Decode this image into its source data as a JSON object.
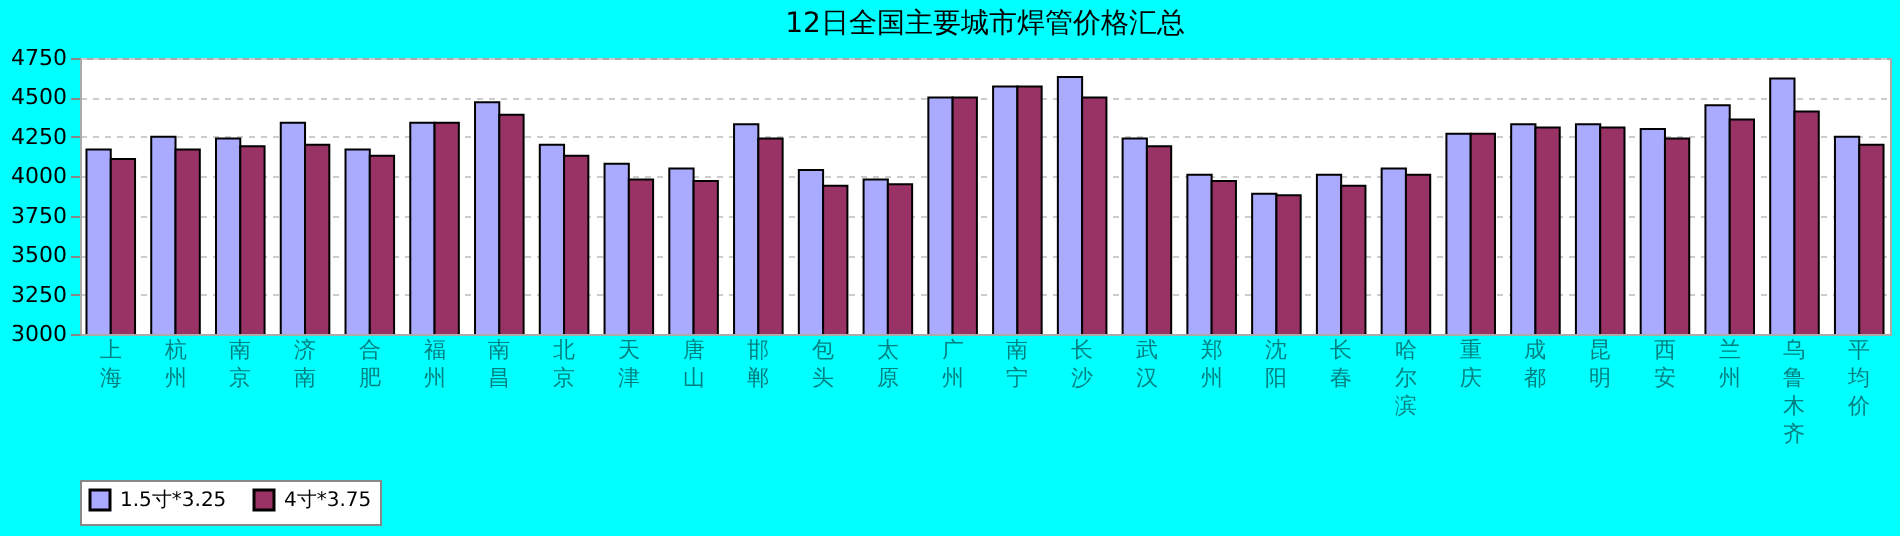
{
  "chart_data": {
    "type": "bar",
    "title": "12日全国主要城市焊管价格汇总",
    "categories": [
      "上海",
      "杭州",
      "南京",
      "济南",
      "合肥",
      "福州",
      "南昌",
      "北京",
      "天津",
      "唐山",
      "邯郸",
      "包头",
      "太原",
      "广州",
      "南宁",
      "长沙",
      "武汉",
      "郑州",
      "沈阳",
      "长春",
      "哈尔滨",
      "重庆",
      "成都",
      "昆明",
      "西安",
      "兰州",
      "乌鲁木齐",
      "平均价"
    ],
    "series": [
      {
        "name": "1.5寸*3.25",
        "color": "#aaaaff",
        "values": [
          4170,
          4250,
          4240,
          4340,
          4170,
          4340,
          4470,
          4200,
          4080,
          4050,
          4330,
          4040,
          3980,
          4500,
          4570,
          4630,
          4240,
          4010,
          3890,
          4010,
          4050,
          4270,
          4330,
          4330,
          4300,
          4450,
          4620,
          4250
        ]
      },
      {
        "name": "4寸*3.75",
        "color": "#993366",
        "values": [
          4110,
          4170,
          4190,
          4200,
          4130,
          4340,
          4390,
          4130,
          3980,
          3970,
          4240,
          3940,
          3950,
          4500,
          4570,
          4500,
          4190,
          3970,
          3880,
          3940,
          4010,
          4270,
          4310,
          4310,
          4240,
          4360,
          4410,
          4200
        ]
      }
    ],
    "ylim": [
      3000,
      4750
    ],
    "yticks": [
      3000,
      3250,
      3500,
      3750,
      4000,
      4250,
      4500,
      4750
    ],
    "grid": "y",
    "legend": "bottom"
  }
}
